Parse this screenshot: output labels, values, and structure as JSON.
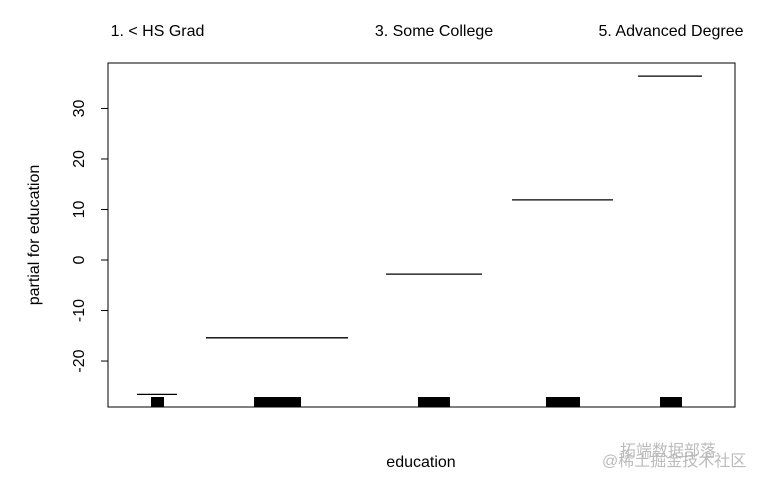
{
  "chart_data": {
    "type": "partial",
    "x_label": "education",
    "y_label": "partial for education",
    "categories": [
      "1. < HS Grad",
      null,
      "3. Some College",
      null,
      "5. Advanced Degree"
    ],
    "values": [
      -26.6,
      -15.4,
      -2.8,
      11.9,
      36.4
    ],
    "color": "#000000",
    "ylim": [
      -29.1,
      39
    ],
    "yticks": [
      -20,
      -10,
      0,
      10,
      20,
      30
    ]
  },
  "watermark": {
    "line1": "拓端数据部落",
    "line2": "@稀土掘金技术社区"
  }
}
